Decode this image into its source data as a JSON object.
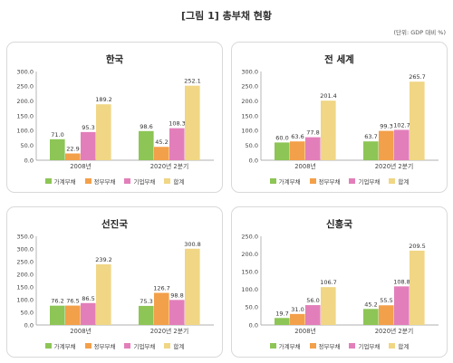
{
  "figure": {
    "title": "[그림 1] 총부채 현황",
    "unit": "(단위: GDP 대비 %)"
  },
  "colors": {
    "가계부채": "#8dc556",
    "정부부채": "#f3a04a",
    "기업부채": "#e27fba",
    "합계": "#f0d685"
  },
  "chart_data": [
    {
      "type": "bar",
      "title": "한국",
      "categories": [
        "2008년",
        "2020년 2분기"
      ],
      "series": [
        {
          "name": "가계부채",
          "values": [
            71.0,
            98.6
          ]
        },
        {
          "name": "정부부채",
          "values": [
            22.9,
            45.2
          ]
        },
        {
          "name": "기업부채",
          "values": [
            95.3,
            108.3
          ]
        },
        {
          "name": "합계",
          "values": [
            189.2,
            252.1
          ]
        }
      ],
      "ylim": [
        0,
        300
      ],
      "yticks": [
        "0.0",
        "50.0",
        "100.0",
        "150.0",
        "200.0",
        "250.0",
        "300.0"
      ],
      "value_labels": [
        [
          "71.0",
          "22.9",
          "95.3",
          "189.2"
        ],
        [
          "98.6",
          "45.2",
          "108.3",
          "252.1"
        ]
      ]
    },
    {
      "type": "bar",
      "title": "전 세계",
      "categories": [
        "2008년",
        "2020년 2분기"
      ],
      "series": [
        {
          "name": "가계부채",
          "values": [
            60.0,
            63.7
          ]
        },
        {
          "name": "정부부채",
          "values": [
            63.6,
            99.3
          ]
        },
        {
          "name": "기업부채",
          "values": [
            77.8,
            102.7
          ]
        },
        {
          "name": "합계",
          "values": [
            201.4,
            265.7
          ]
        }
      ],
      "ylim": [
        0,
        300
      ],
      "yticks": [
        "0.0",
        "50.0",
        "100.0",
        "150.0",
        "200.0",
        "250.0",
        "300.0"
      ],
      "value_labels": [
        [
          "60.0",
          "63.6",
          "77.8",
          "201.4"
        ],
        [
          "63.7",
          "99.3",
          "102.7",
          "265.7"
        ]
      ]
    },
    {
      "type": "bar",
      "title": "선진국",
      "categories": [
        "2008년",
        "2020년 2분기"
      ],
      "series": [
        {
          "name": "가계부채",
          "values": [
            76.2,
            75.3
          ]
        },
        {
          "name": "정부부채",
          "values": [
            76.5,
            126.7
          ]
        },
        {
          "name": "기업부채",
          "values": [
            86.5,
            98.8
          ]
        },
        {
          "name": "합계",
          "values": [
            239.2,
            300.8
          ]
        }
      ],
      "ylim": [
        0,
        350
      ],
      "yticks": [
        "0.0",
        "50.0",
        "100.0",
        "150.0",
        "200.0",
        "250.0",
        "300.0",
        "350.0"
      ],
      "value_labels": [
        [
          "76.2",
          "76.5",
          "86.5",
          "239.2"
        ],
        [
          "75.3",
          "126.7",
          "98.8",
          "300.8"
        ]
      ]
    },
    {
      "type": "bar",
      "title": "신흥국",
      "categories": [
        "2008년",
        "2020년 2분기"
      ],
      "series": [
        {
          "name": "가계부채",
          "values": [
            19.7,
            45.2
          ]
        },
        {
          "name": "정부부채",
          "values": [
            31.0,
            55.5
          ]
        },
        {
          "name": "기업부채",
          "values": [
            56.0,
            108.8
          ]
        },
        {
          "name": "합계",
          "values": [
            106.7,
            209.5
          ]
        }
      ],
      "ylim": [
        0,
        250
      ],
      "yticks": [
        "0.0",
        "50.0",
        "100.0",
        "150.0",
        "200.0",
        "250.0"
      ],
      "value_labels": [
        [
          "19.7",
          "31.0",
          "56.0",
          "106.7"
        ],
        [
          "45.2",
          "55.5",
          "108.8",
          "209.5"
        ]
      ]
    }
  ]
}
